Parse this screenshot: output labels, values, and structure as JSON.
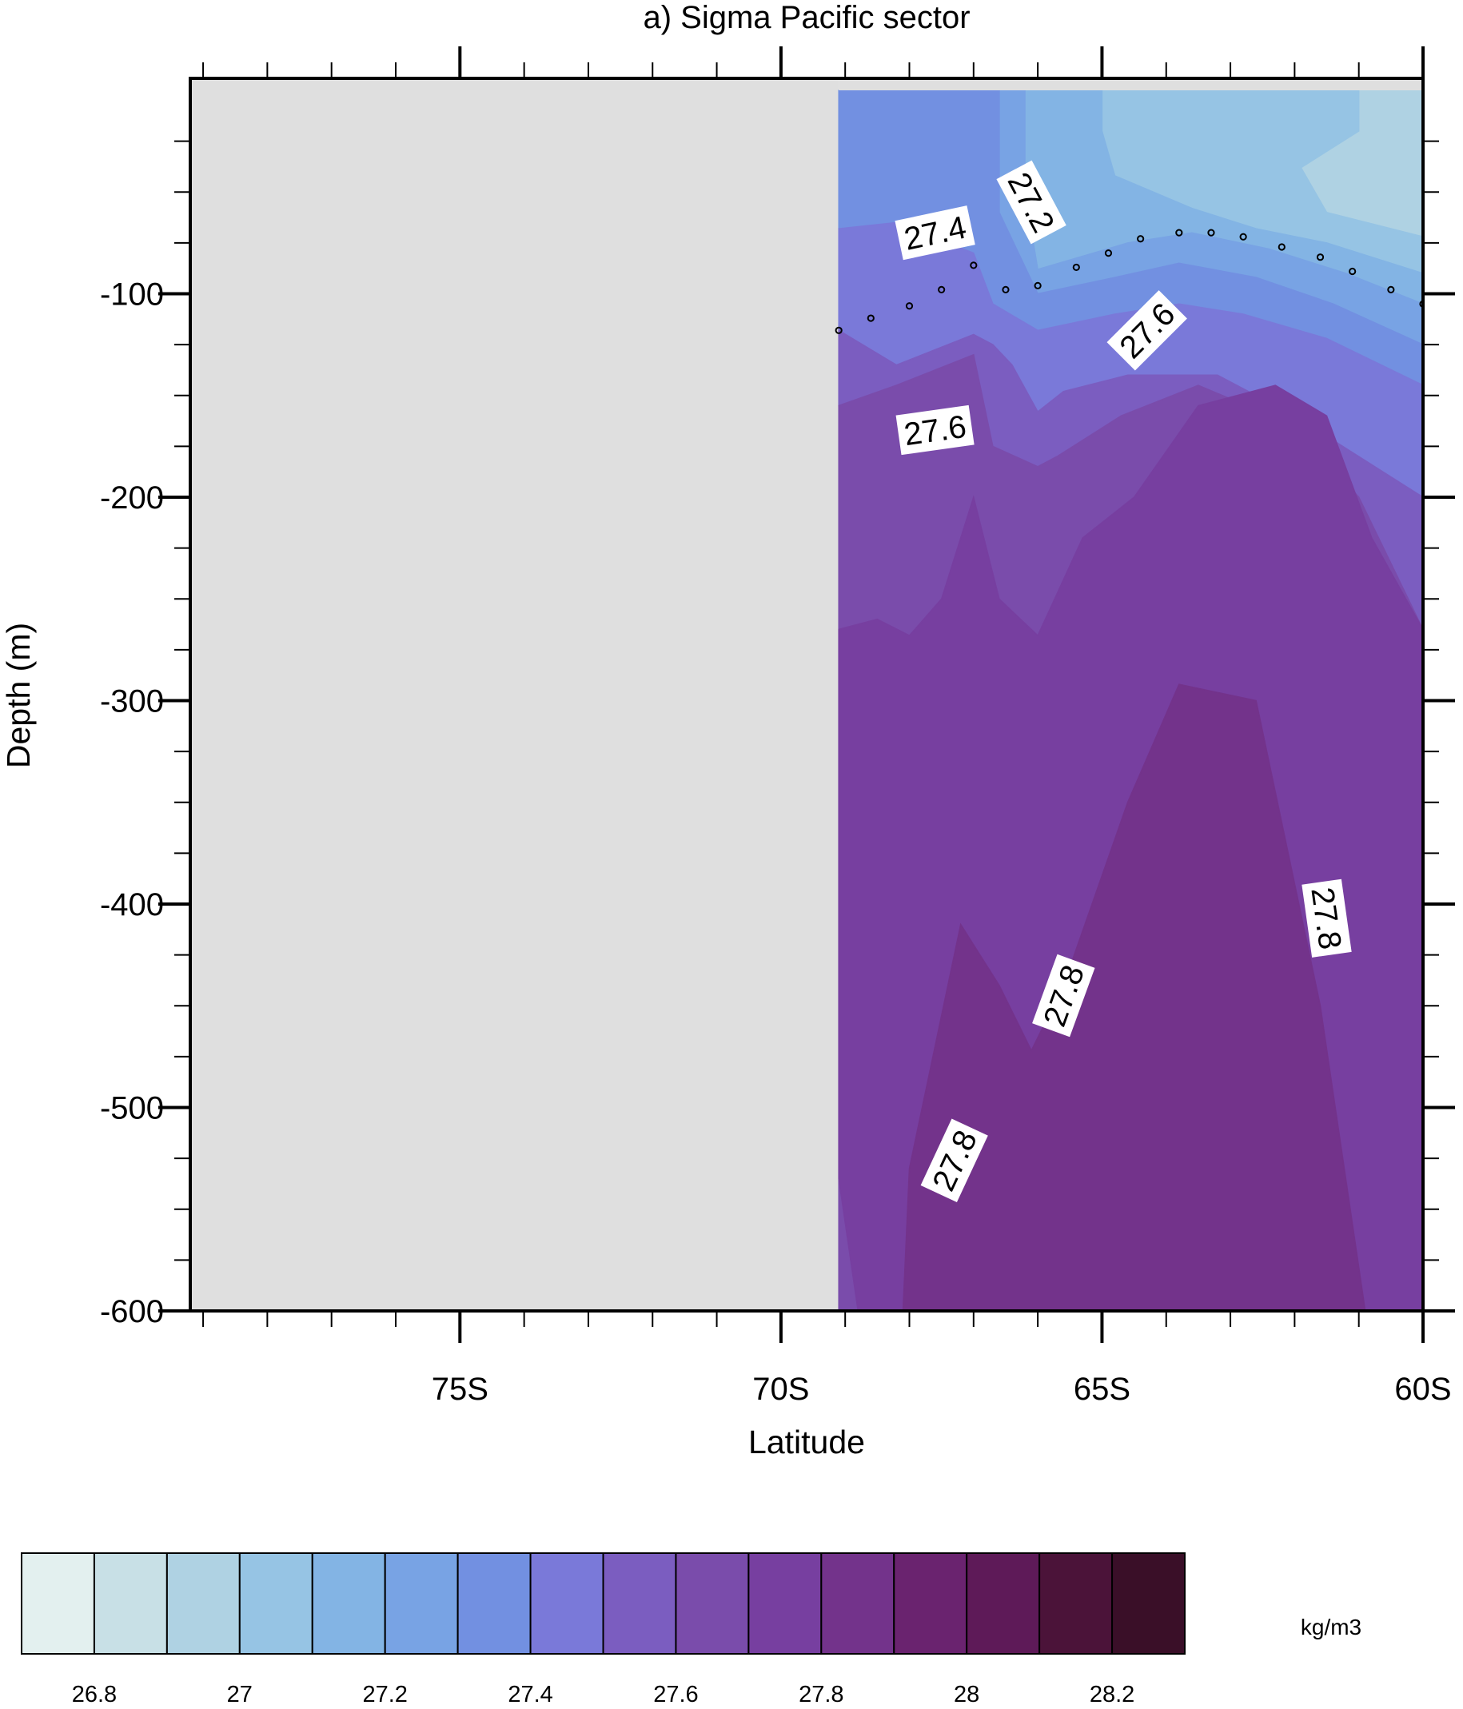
{
  "chart_data": {
    "type": "contour",
    "title": "a) Sigma Pacific sector",
    "xlabel": "Latitude",
    "ylabel": "Depth (m)",
    "x_ticks": [
      {
        "value": -75,
        "label": "75S"
      },
      {
        "value": -70,
        "label": "70S"
      },
      {
        "value": -65,
        "label": "65S"
      },
      {
        "value": -60,
        "label": "60S"
      }
    ],
    "y_ticks": [
      {
        "value": -100,
        "label": "-100"
      },
      {
        "value": -200,
        "label": "-200"
      },
      {
        "value": -300,
        "label": "-300"
      },
      {
        "value": -400,
        "label": "-400"
      },
      {
        "value": -500,
        "label": "-500"
      },
      {
        "value": -600,
        "label": "-600"
      }
    ],
    "xlim": [
      -79.2,
      -60
    ],
    "ylim": [
      -600,
      0
    ],
    "missing_data_region": {
      "lat_max": -69.1,
      "color": "#dfdfdf"
    },
    "contour_levels": [
      {
        "lower": null,
        "upper": 26.8,
        "color": "#e3f0ef"
      },
      {
        "lower": 26.8,
        "upper": 26.9,
        "color": "#c8e0e6"
      },
      {
        "lower": 26.9,
        "upper": 27.0,
        "color": "#afd2e3"
      },
      {
        "lower": 27.0,
        "upper": 27.1,
        "color": "#96c4e4"
      },
      {
        "lower": 27.1,
        "upper": 27.2,
        "color": "#83b4e4"
      },
      {
        "lower": 27.2,
        "upper": 27.3,
        "color": "#78a3e4"
      },
      {
        "lower": 27.3,
        "upper": 27.4,
        "color": "#7290e1"
      },
      {
        "lower": 27.4,
        "upper": 27.5,
        "color": "#7a79d9"
      },
      {
        "lower": 27.5,
        "upper": 27.6,
        "color": "#7b5dc0"
      },
      {
        "lower": 27.6,
        "upper": 27.7,
        "color": "#7a4cab"
      },
      {
        "lower": 27.7,
        "upper": 27.8,
        "color": "#773fa0"
      },
      {
        "lower": 27.8,
        "upper": 27.9,
        "color": "#73338b"
      },
      {
        "lower": 27.9,
        "upper": 28.0,
        "color": "#6a236f"
      },
      {
        "lower": 28.0,
        "upper": 28.1,
        "color": "#5e1a58"
      },
      {
        "lower": 28.1,
        "upper": 28.2,
        "color": "#4b1339"
      },
      {
        "lower": 28.2,
        "upper": null,
        "color": "#3a0f28"
      }
    ],
    "regions": [
      {
        "level": 26.95,
        "points": [
          [
            -61.0,
            0
          ],
          [
            -60,
            0
          ],
          [
            -60,
            -72
          ],
          [
            -61.5,
            -60
          ],
          [
            -61.9,
            -38
          ],
          [
            -61.0,
            -20
          ]
        ]
      },
      {
        "level": 27.05,
        "points": [
          [
            -65.0,
            0
          ],
          [
            -61.0,
            0
          ],
          [
            -61.0,
            -20
          ],
          [
            -61.9,
            -38
          ],
          [
            -61.5,
            -60
          ],
          [
            -60,
            -72
          ],
          [
            -60,
            -90
          ],
          [
            -61.5,
            -75
          ],
          [
            -62.6,
            -68
          ],
          [
            -63.6,
            -58
          ],
          [
            -64.8,
            -42
          ],
          [
            -65.0,
            -20
          ]
        ]
      },
      {
        "level": 27.15,
        "points": [
          [
            -66.2,
            0
          ],
          [
            -65.0,
            0
          ],
          [
            -65.0,
            -20
          ],
          [
            -64.8,
            -42
          ],
          [
            -63.6,
            -58
          ],
          [
            -62.6,
            -68
          ],
          [
            -61.5,
            -75
          ],
          [
            -60,
            -90
          ],
          [
            -60,
            -105
          ],
          [
            -61.2,
            -90
          ],
          [
            -62.4,
            -78
          ],
          [
            -63.6,
            -70
          ],
          [
            -64.6,
            -75
          ],
          [
            -66.0,
            -88
          ],
          [
            -66.2,
            -50
          ]
        ]
      },
      {
        "level": 27.25,
        "points": [
          [
            -66.6,
            0
          ],
          [
            -66.2,
            0
          ],
          [
            -66.2,
            -50
          ],
          [
            -66.0,
            -88
          ],
          [
            -64.6,
            -75
          ],
          [
            -63.6,
            -70
          ],
          [
            -62.4,
            -78
          ],
          [
            -61.2,
            -90
          ],
          [
            -60,
            -105
          ],
          [
            -60,
            -125
          ],
          [
            -61.4,
            -105
          ],
          [
            -62.6,
            -92
          ],
          [
            -63.8,
            -85
          ],
          [
            -64.8,
            -92
          ],
          [
            -66.0,
            -100
          ],
          [
            -66.6,
            -60
          ]
        ]
      },
      {
        "level": 27.35,
        "points": [
          [
            -69.1,
            0
          ],
          [
            -66.6,
            0
          ],
          [
            -66.6,
            -60
          ],
          [
            -66.0,
            -100
          ],
          [
            -64.8,
            -92
          ],
          [
            -63.8,
            -85
          ],
          [
            -62.6,
            -92
          ],
          [
            -61.4,
            -105
          ],
          [
            -60,
            -125
          ],
          [
            -60,
            -145
          ],
          [
            -61.5,
            -122
          ],
          [
            -62.8,
            -110
          ],
          [
            -63.8,
            -105
          ],
          [
            -64.8,
            -110
          ],
          [
            -66.0,
            -118
          ],
          [
            -66.7,
            -105
          ],
          [
            -67.0,
            -80
          ],
          [
            -68.2,
            -65
          ],
          [
            -69.1,
            -68
          ]
        ]
      },
      {
        "level": 27.45,
        "points": [
          [
            -69.1,
            -68
          ],
          [
            -68.2,
            -65
          ],
          [
            -67.0,
            -80
          ],
          [
            -66.7,
            -105
          ],
          [
            -66.0,
            -118
          ],
          [
            -64.8,
            -110
          ],
          [
            -63.8,
            -105
          ],
          [
            -62.8,
            -110
          ],
          [
            -61.5,
            -122
          ],
          [
            -60,
            -145
          ],
          [
            -60,
            -200
          ],
          [
            -61.0,
            -180
          ],
          [
            -62.0,
            -160
          ],
          [
            -63.2,
            -140
          ],
          [
            -64.6,
            -140
          ],
          [
            -65.6,
            -148
          ],
          [
            -66.0,
            -158
          ],
          [
            -66.4,
            -135
          ],
          [
            -66.7,
            -125
          ],
          [
            -67.0,
            -120
          ],
          [
            -68.2,
            -135
          ],
          [
            -69.1,
            -118
          ]
        ]
      },
      {
        "level": 27.55,
        "points": [
          [
            -69.1,
            -118
          ],
          [
            -68.2,
            -135
          ],
          [
            -67.0,
            -120
          ],
          [
            -66.7,
            -125
          ],
          [
            -66.4,
            -135
          ],
          [
            -66.0,
            -158
          ],
          [
            -65.6,
            -148
          ],
          [
            -64.6,
            -140
          ],
          [
            -63.2,
            -140
          ],
          [
            -62.0,
            -160
          ],
          [
            -61.0,
            -180
          ],
          [
            -60,
            -200
          ],
          [
            -60,
            -265
          ],
          [
            -61.0,
            -200
          ],
          [
            -62.0,
            -165
          ],
          [
            -63.5,
            -145
          ],
          [
            -64.7,
            -160
          ],
          [
            -65.7,
            -180
          ],
          [
            -66.0,
            -185
          ],
          [
            -66.7,
            -175
          ],
          [
            -67.0,
            -130
          ],
          [
            -68.2,
            -145
          ],
          [
            -69.1,
            -155
          ]
        ]
      },
      {
        "level": 27.65,
        "points": [
          [
            -69.1,
            -155
          ],
          [
            -68.2,
            -145
          ],
          [
            -67.0,
            -130
          ],
          [
            -66.7,
            -175
          ],
          [
            -66.0,
            -185
          ],
          [
            -65.7,
            -180
          ],
          [
            -64.7,
            -160
          ],
          [
            -63.5,
            -145
          ],
          [
            -62.0,
            -165
          ],
          [
            -61.0,
            -200
          ],
          [
            -60,
            -265
          ],
          [
            -60,
            -600
          ],
          [
            -69.1,
            -600
          ]
        ]
      },
      {
        "level": 27.75,
        "points": [
          [
            -69.1,
            -265
          ],
          [
            -68.5,
            -260
          ],
          [
            -68.0,
            -268
          ],
          [
            -67.5,
            -250
          ],
          [
            -67.0,
            -200
          ],
          [
            -66.6,
            -250
          ],
          [
            -66.0,
            -268
          ],
          [
            -65.3,
            -220
          ],
          [
            -64.5,
            -200
          ],
          [
            -63.5,
            -155
          ],
          [
            -62.3,
            -145
          ],
          [
            -61.5,
            -160
          ],
          [
            -60.8,
            -220
          ],
          [
            -60,
            -265
          ],
          [
            -60,
            -600
          ],
          [
            -60.9,
            -600
          ],
          [
            -61.6,
            -450
          ],
          [
            -62.6,
            -300
          ],
          [
            -63.8,
            -292
          ],
          [
            -64.6,
            -350
          ],
          [
            -65.6,
            -440
          ],
          [
            -66.1,
            -472
          ],
          [
            -66.6,
            -440
          ],
          [
            -67.2,
            -410
          ],
          [
            -68.0,
            -530
          ],
          [
            -68.1,
            -600
          ],
          [
            -68.8,
            -600
          ],
          [
            -69.1,
            -535
          ]
        ]
      },
      {
        "level": 27.85,
        "points": [
          [
            -68.1,
            -600
          ],
          [
            -68.0,
            -530
          ],
          [
            -67.2,
            -410
          ],
          [
            -66.6,
            -440
          ],
          [
            -66.1,
            -472
          ],
          [
            -65.6,
            -440
          ],
          [
            -64.6,
            -350
          ],
          [
            -63.8,
            -292
          ],
          [
            -62.6,
            -300
          ],
          [
            -61.6,
            -450
          ],
          [
            -60.9,
            -600
          ]
        ]
      }
    ],
    "contour_labels": [
      {
        "text": "27.4",
        "lat": -67.6,
        "depth": -70,
        "angle": -12
      },
      {
        "text": "27.2",
        "lat": -66.1,
        "depth": -55,
        "angle": 62
      },
      {
        "text": "27.6",
        "lat": -67.6,
        "depth": -167,
        "angle": -8
      },
      {
        "text": "27.6",
        "lat": -64.3,
        "depth": -118,
        "angle": -45
      },
      {
        "text": "27.8",
        "lat": -61.5,
        "depth": -407,
        "angle": 82
      },
      {
        "text": "27.8",
        "lat": -65.6,
        "depth": -445,
        "angle": -70
      },
      {
        "text": "27.8",
        "lat": -67.3,
        "depth": -526,
        "angle": -65
      }
    ],
    "mixed_layer_points": [
      [
        -69.1,
        -118
      ],
      [
        -68.6,
        -112
      ],
      [
        -68.0,
        -106
      ],
      [
        -67.5,
        -98
      ],
      [
        -67.0,
        -86
      ],
      [
        -66.5,
        -98
      ],
      [
        -66.0,
        -96
      ],
      [
        -65.4,
        -87
      ],
      [
        -64.9,
        -80
      ],
      [
        -64.4,
        -73
      ],
      [
        -63.8,
        -70
      ],
      [
        -63.3,
        -70
      ],
      [
        -62.8,
        -72
      ],
      [
        -62.2,
        -77
      ],
      [
        -61.6,
        -82
      ],
      [
        -61.1,
        -89
      ],
      [
        -60.5,
        -98
      ],
      [
        -60.0,
        -105
      ]
    ],
    "colorbar": {
      "unit_label": "kg/m3",
      "tick_labels": [
        "26.8",
        "27",
        "27.2",
        "27.4",
        "27.6",
        "27.8",
        "28",
        "28.2"
      ]
    }
  }
}
